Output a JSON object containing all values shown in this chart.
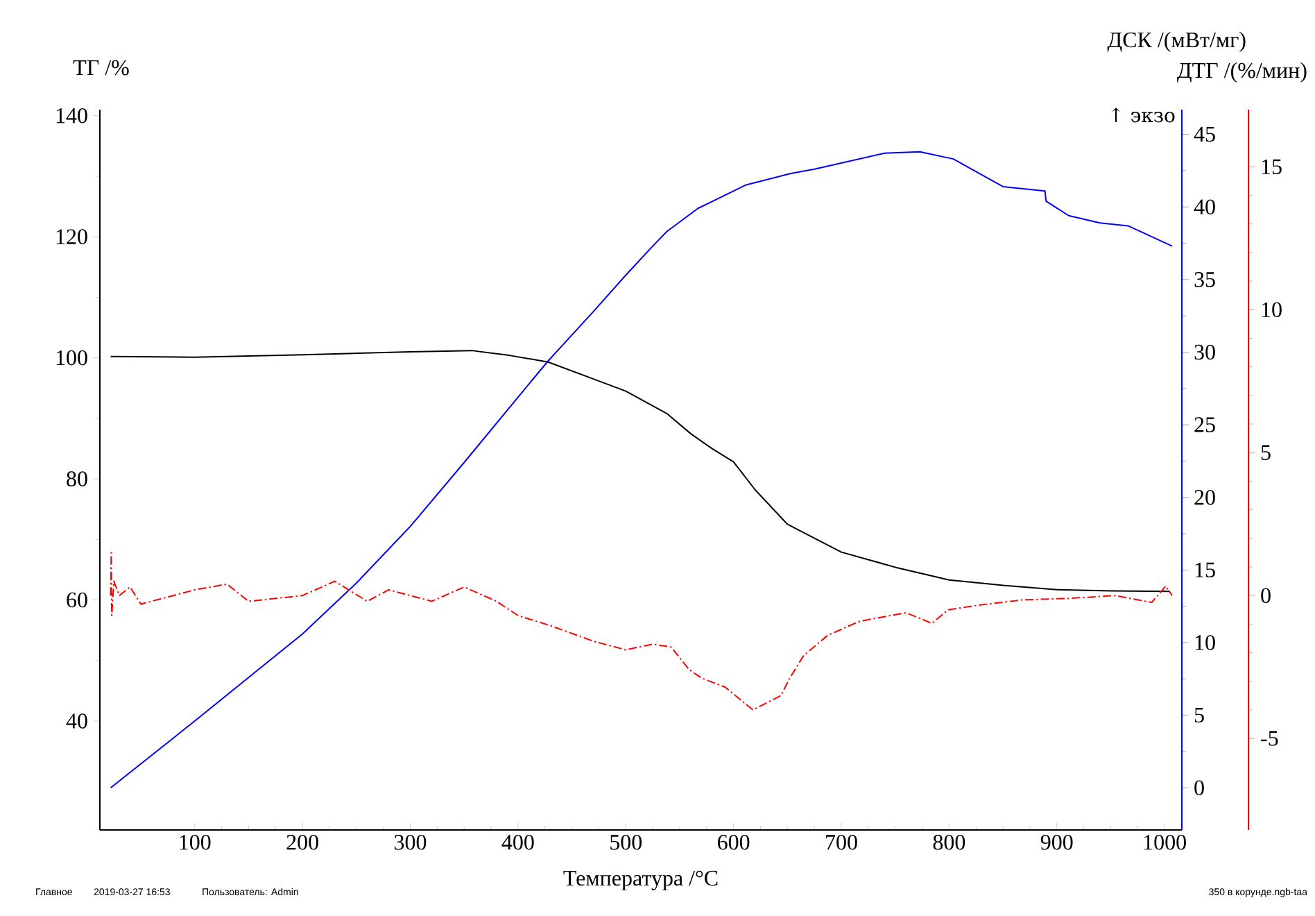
{
  "chart_data": {
    "type": "line",
    "xlabel": "Температура /°C",
    "ylabel": "ТГ /%",
    "y2label": "ДСК /(мВт/мг)",
    "y3label": "ДТГ /(%/мин)",
    "xlim": [
      12,
      1016
    ],
    "xticks": [
      100,
      200,
      300,
      400,
      500,
      600,
      700,
      800,
      900,
      1000
    ],
    "ylim": [
      22,
      141
    ],
    "yticks": [
      40,
      60,
      80,
      100,
      120,
      140
    ],
    "y2lim": [
      -2.9,
      46.7
    ],
    "y2ticks": [
      0,
      5,
      10,
      15,
      20,
      25,
      30,
      35,
      40,
      45
    ],
    "y3lim": [
      -8.2,
      17
    ],
    "y3ticks": [
      -5,
      0,
      5,
      10,
      15
    ],
    "annotations": [
      "↑ экзо",
      "Главное",
      "2019-03-27 16:53",
      "Пользователь: Admin",
      "350 в корунде.ngb-taa"
    ],
    "series": [
      {
        "color": "#000000",
        "line_style": "solid",
        "x": [
          22,
          100,
          200,
          300,
          357,
          392,
          428,
          473,
          500,
          538,
          560,
          580,
          600,
          620,
          650,
          700,
          750,
          800,
          850,
          900,
          950,
          1005
        ],
        "values": [
          100.2,
          100.1,
          100.5,
          101.0,
          101.2,
          100.4,
          99.3,
          96.3,
          94.5,
          90.8,
          87.5,
          85.0,
          82.8,
          78.2,
          72.5,
          67.9,
          65.4,
          63.3,
          62.4,
          61.7,
          61.5,
          61.4
        ]
      },
      {
        "color": "#0000ff",
        "line_style": "solid",
        "axis": "y2",
        "x": [
          22,
          100,
          200,
          250,
          300,
          350,
          400,
          428,
          470,
          500,
          525,
          538,
          567,
          611,
          653,
          675,
          740,
          773,
          804,
          850,
          889,
          890,
          911,
          940,
          966,
          1007
        ],
        "values": [
          0.0,
          4.6,
          10.6,
          14.1,
          18.0,
          22.4,
          26.9,
          29.4,
          32.8,
          35.3,
          37.3,
          38.3,
          39.9,
          41.5,
          42.3,
          42.6,
          43.7,
          43.8,
          43.3,
          41.4,
          41.1,
          40.4,
          39.4,
          38.9,
          38.7,
          37.3
        ]
      },
      {
        "color": "#ff0000",
        "line_style": "dashed",
        "axis": "y3",
        "x": [
          22,
          22.5,
          23,
          25,
          30,
          40,
          50,
          80,
          100,
          130,
          150,
          200,
          230,
          260,
          280,
          320,
          350,
          380,
          400,
          430,
          470,
          500,
          525,
          542,
          559,
          571,
          592,
          618,
          644,
          652,
          665,
          687,
          717,
          760,
          784,
          799,
          825,
          868,
          911,
          954,
          988,
          1001,
          1007
        ],
        "values": [
          0,
          1.5,
          -0.7,
          0.5,
          0,
          0.3,
          -0.3,
          0,
          0.2,
          0.4,
          -0.2,
          0,
          0.5,
          -0.2,
          0.2,
          -0.2,
          0.3,
          -0.2,
          -0.7,
          -1.05,
          -1.6,
          -1.9,
          -1.7,
          -1.8,
          -2.6,
          -2.9,
          -3.2,
          -4.0,
          -3.5,
          -2.9,
          -2.1,
          -1.4,
          -0.9,
          -0.6,
          -0.97,
          -0.5,
          -0.35,
          -0.15,
          -0.1,
          0,
          -0.24,
          0.33,
          0
        ]
      }
    ]
  }
}
